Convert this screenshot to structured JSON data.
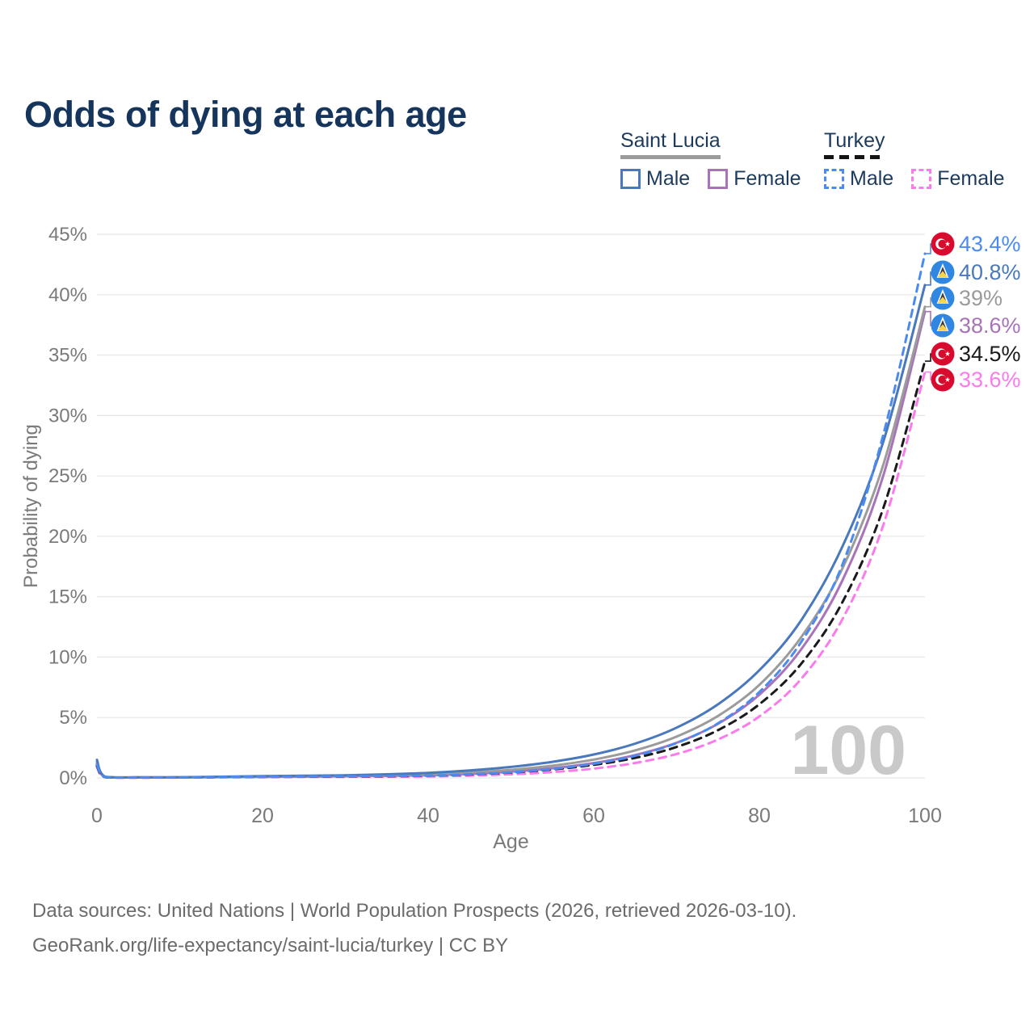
{
  "title": "Odds of dying at each age",
  "watermark": "100",
  "legend": {
    "groups": [
      {
        "label": "Saint Lucia",
        "line_style": "solid",
        "underline_color": "#9b9b9b",
        "items": [
          {
            "label": "Male",
            "color": "#4a78bd",
            "dash": false
          },
          {
            "label": "Female",
            "color": "#a873b8",
            "dash": false
          }
        ]
      },
      {
        "label": "Turkey",
        "line_style": "dashed",
        "underline_color": "#141414",
        "items": [
          {
            "label": "Male",
            "color": "#4b8bf0",
            "dash": true
          },
          {
            "label": "Female",
            "color": "#fb7bec",
            "dash": true
          }
        ]
      }
    ]
  },
  "footer": {
    "line1": "Data sources: United Nations | World Population Prospects (2026, retrieved 2026-03-10).",
    "line2": "GeoRank.org/life-expectancy/saint-lucia/turkey | CC BY"
  },
  "flag_colors": {
    "turkey": {
      "bg": "#d80b2e",
      "fg": "#ffffff"
    },
    "saint_lucia": {
      "bg": "#2f87e2",
      "gold": "#f6d44c",
      "dark": "#3d3d3d",
      "edge": "#ffffff"
    }
  },
  "chart_data": {
    "type": "line",
    "title": "Odds of dying at each age",
    "xlabel": "Age",
    "ylabel": "Probability of dying",
    "xlim": [
      0,
      100
    ],
    "ylim": [
      0,
      45
    ],
    "xticks": [
      0,
      20,
      40,
      60,
      80,
      100
    ],
    "ytick_step": 5,
    "ytick_suffix": "%",
    "grid": true,
    "legend_position": "top-right",
    "x": [
      0,
      1,
      5,
      10,
      15,
      20,
      25,
      30,
      35,
      40,
      45,
      50,
      55,
      60,
      65,
      70,
      75,
      80,
      85,
      90,
      95,
      100
    ],
    "series": [
      {
        "name": "Turkey Male",
        "country": "Turkey",
        "sex": "Male",
        "color": "#4b8bf0",
        "dash": true,
        "flag": "turkey",
        "end_label": "43.4%",
        "end_value": 43.4,
        "values": [
          1.1,
          0.07,
          0.04,
          0.05,
          0.08,
          0.12,
          0.13,
          0.15,
          0.17,
          0.19,
          0.3,
          0.47,
          0.74,
          1.17,
          1.83,
          2.88,
          4.52,
          7.11,
          11.2,
          17.6,
          28.5,
          43.4
        ]
      },
      {
        "name": "Saint Lucia Male",
        "country": "Saint Lucia",
        "sex": "Male",
        "color": "#4a78bd",
        "dash": false,
        "flag": "saint_lucia",
        "end_label": "40.8%",
        "end_value": 40.8,
        "values": [
          1.5,
          0.1,
          0.05,
          0.06,
          0.1,
          0.15,
          0.18,
          0.22,
          0.3,
          0.42,
          0.62,
          0.91,
          1.33,
          1.94,
          2.84,
          4.16,
          6.09,
          8.91,
          13.0,
          19.1,
          27.9,
          40.8
        ]
      },
      {
        "name": "Saint Lucia Both sexes",
        "country": "Saint Lucia",
        "sex": "Both",
        "color": "#9b9b9b",
        "dash": false,
        "flag": "saint_lucia",
        "end_label": "39%",
        "end_value": 39.0,
        "values": [
          1.35,
          0.09,
          0.05,
          0.05,
          0.09,
          0.13,
          0.15,
          0.18,
          0.24,
          0.3,
          0.45,
          0.67,
          1.01,
          1.52,
          2.28,
          3.42,
          5.13,
          7.7,
          11.6,
          17.3,
          26.0,
          39.0
        ]
      },
      {
        "name": "Saint Lucia Female",
        "country": "Saint Lucia",
        "sex": "Female",
        "color": "#a873b8",
        "dash": false,
        "flag": "saint_lucia",
        "end_label": "38.6%",
        "end_value": 38.6,
        "values": [
          1.2,
          0.08,
          0.04,
          0.04,
          0.07,
          0.09,
          0.11,
          0.14,
          0.17,
          0.22,
          0.34,
          0.52,
          0.8,
          1.23,
          1.89,
          2.91,
          4.48,
          6.89,
          10.6,
          16.3,
          25.1,
          38.6
        ]
      },
      {
        "name": "Turkey Both sexes",
        "country": "Turkey",
        "sex": "Both",
        "color": "#1a1a1a",
        "dash": true,
        "flag": "turkey",
        "end_label": "34.5%",
        "end_value": 34.5,
        "values": [
          1.0,
          0.06,
          0.03,
          0.04,
          0.06,
          0.09,
          0.1,
          0.12,
          0.14,
          0.19,
          0.29,
          0.45,
          0.7,
          1.08,
          1.66,
          2.56,
          3.95,
          6.1,
          9.41,
          14.5,
          22.4,
          34.5
        ]
      },
      {
        "name": "Turkey Female",
        "country": "Turkey",
        "sex": "Female",
        "color": "#fb7bec",
        "dash": true,
        "flag": "turkey",
        "end_label": "33.6%",
        "end_value": 33.6,
        "values": [
          0.9,
          0.05,
          0.03,
          0.03,
          0.05,
          0.06,
          0.08,
          0.09,
          0.11,
          0.12,
          0.19,
          0.3,
          0.48,
          0.77,
          1.24,
          1.98,
          3.18,
          5.09,
          8.16,
          13.1,
          21.0,
          33.6
        ]
      }
    ]
  }
}
